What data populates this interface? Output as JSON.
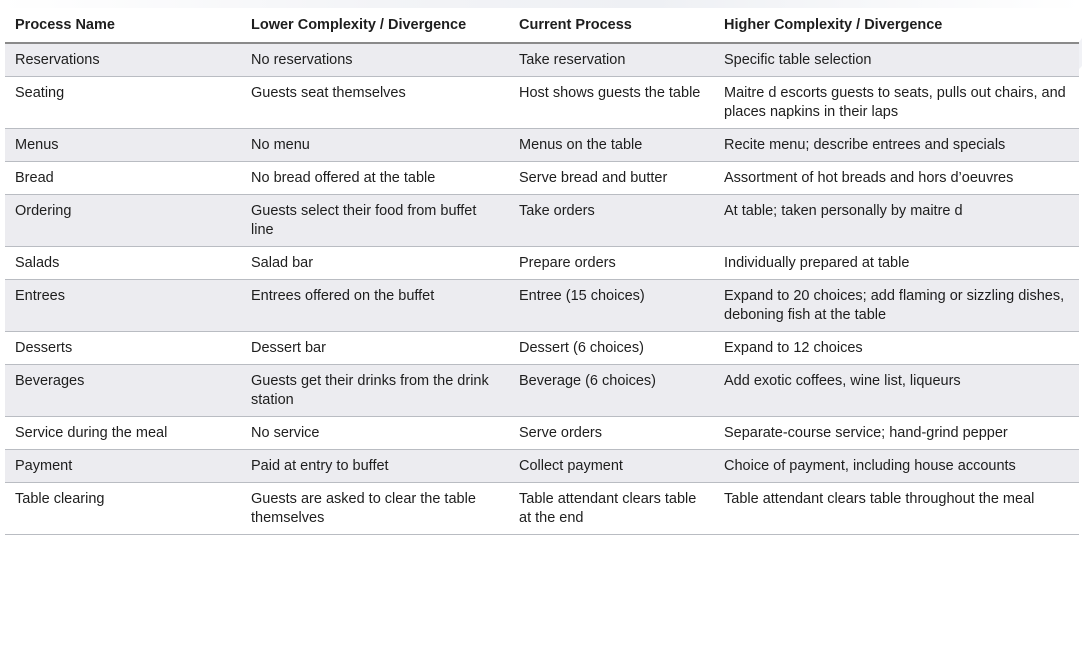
{
  "table": {
    "headers": [
      "Process Name",
      "Lower Complexity / Divergence",
      "Current Process",
      "Higher Complexity / Divergence"
    ],
    "rows": [
      [
        "Reservations",
        "No reservations",
        "Take reservation",
        "Specific table selection"
      ],
      [
        "Seating",
        "Guests seat themselves",
        "Host shows guests the table",
        "Maitre d escorts guests to seats, pulls out chairs, and places napkins in their laps"
      ],
      [
        "Menus",
        "No menu",
        "Menus on the table",
        "Recite menu; describe entrees and specials"
      ],
      [
        "Bread",
        "No bread offered at the table",
        "Serve bread and butter",
        "Assortment of hot breads and hors d’oeuvres"
      ],
      [
        "Ordering",
        "Guests select their food from buffet line",
        "Take orders",
        "At table; taken personally by maitre d"
      ],
      [
        "Salads",
        "Salad bar",
        "Prepare orders",
        "Individually prepared at table"
      ],
      [
        "Entrees",
        "Entrees offered on the buffet",
        "Entree (15 choices)",
        "Expand to 20 choices; add flaming or sizzling dishes, deboning fish at the table"
      ],
      [
        "Desserts",
        "Dessert bar",
        "Dessert (6 choices)",
        "Expand to 12 choices"
      ],
      [
        "Beverages",
        "Guests get their drinks from the drink station",
        "Beverage (6 choices)",
        "Add exotic coffees, wine list, liqueurs"
      ],
      [
        "Service during the meal",
        "No service",
        "Serve orders",
        "Separate-course service; hand-grind pepper"
      ],
      [
        "Payment",
        "Paid at entry to buffet",
        "Collect payment",
        "Choice of payment, including house accounts"
      ],
      [
        "Table clearing",
        "Guests are asked to clear the table themselves",
        "Table attendant clears table at the end",
        "Table attendant clears table throughout the meal"
      ]
    ]
  }
}
